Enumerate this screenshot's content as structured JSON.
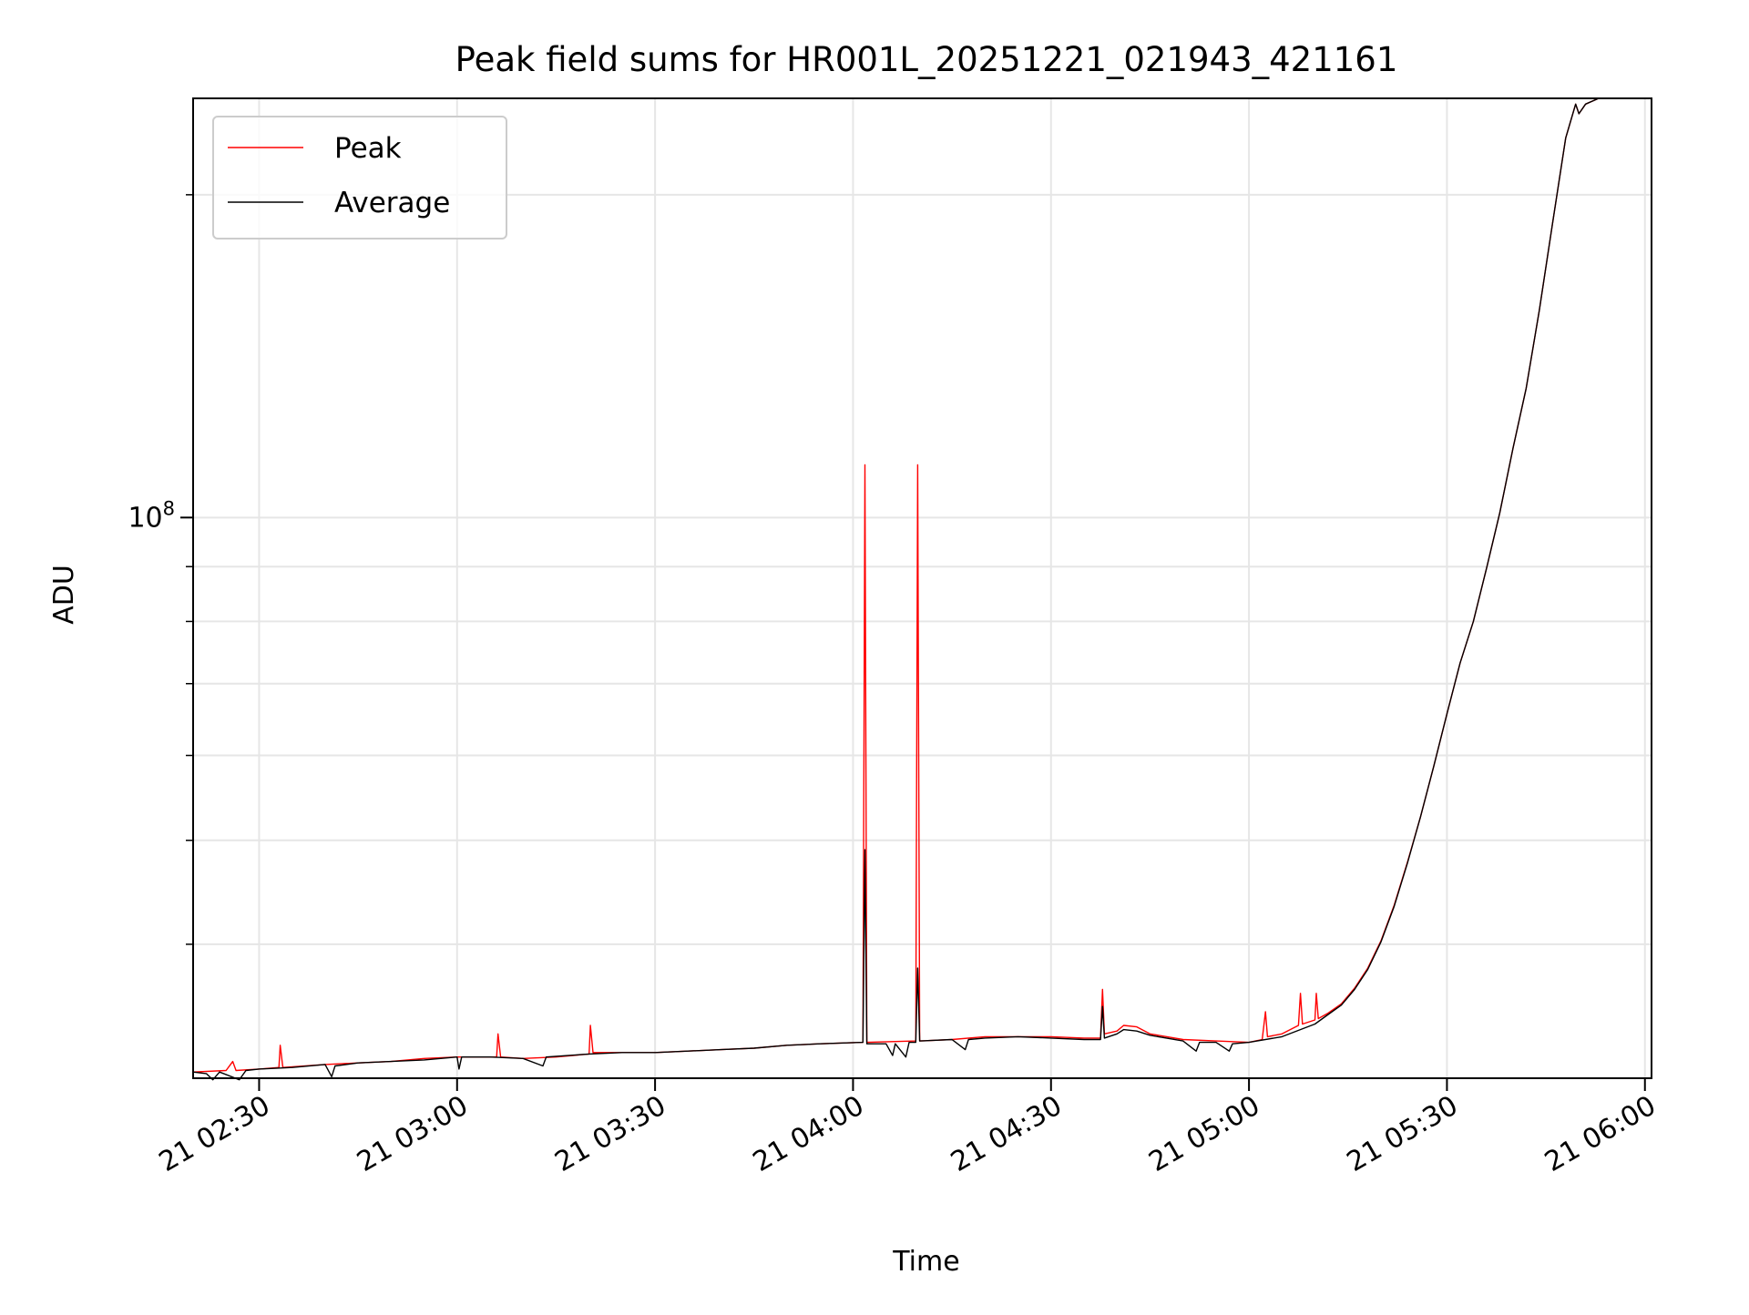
{
  "chart_data": {
    "type": "line",
    "title": "Peak field sums for HR001L_20251221_021943_421161",
    "xlabel": "Time",
    "ylabel": "ADU",
    "x_axis": {
      "unit": "time of day (day 21)",
      "range": [
        "02:20",
        "06:01"
      ],
      "ticks": [
        {
          "t": "02:30",
          "label": "21 02:30"
        },
        {
          "t": "03:00",
          "label": "21 03:00"
        },
        {
          "t": "03:30",
          "label": "21 03:30"
        },
        {
          "t": "04:00",
          "label": "21 04:00"
        },
        {
          "t": "04:30",
          "label": "21 04:30"
        },
        {
          "t": "05:00",
          "label": "21 05:00"
        },
        {
          "t": "05:30",
          "label": "21 05:30"
        },
        {
          "t": "06:00",
          "label": "21 06:00"
        }
      ]
    },
    "y_axis": {
      "scale": "log",
      "range": [
        30000000,
        246000000
      ],
      "major_ticks": [
        {
          "value": 100000000,
          "base": "10",
          "exp": "8"
        }
      ],
      "minor_ticks": [
        40000000,
        50000000,
        60000000,
        70000000,
        80000000,
        90000000,
        200000000
      ]
    },
    "grid": true,
    "legend": {
      "position": "top-left"
    },
    "series": [
      {
        "name": "Peak",
        "color": "#ff0000",
        "points": [
          [
            "02:20",
            30400000
          ],
          [
            "02:25",
            30500000
          ],
          [
            "02:26",
            31100000
          ],
          [
            "02:26.5",
            30500000
          ],
          [
            "02:30",
            30600000
          ],
          [
            "02:33",
            30700000
          ],
          [
            "02:33.2",
            32200000
          ],
          [
            "02:33.6",
            30700000
          ],
          [
            "02:40",
            30900000
          ],
          [
            "02:45",
            31000000
          ],
          [
            "02:50",
            31100000
          ],
          [
            "02:55",
            31300000
          ],
          [
            "03:00",
            31400000
          ],
          [
            "03:05",
            31400000
          ],
          [
            "03:06",
            31400000
          ],
          [
            "03:06.2",
            33000000
          ],
          [
            "03:06.6",
            31400000
          ],
          [
            "03:10",
            31300000
          ],
          [
            "03:15",
            31400000
          ],
          [
            "03:20",
            31600000
          ],
          [
            "03:20.2",
            33600000
          ],
          [
            "03:20.6",
            31700000
          ],
          [
            "03:25",
            31700000
          ],
          [
            "03:30",
            31700000
          ],
          [
            "03:35",
            31800000
          ],
          [
            "03:40",
            31900000
          ],
          [
            "03:45",
            32000000
          ],
          [
            "03:50",
            32200000
          ],
          [
            "03:55",
            32300000
          ],
          [
            "04:01.5",
            32400000
          ],
          [
            "04:01.8",
            112000000
          ],
          [
            "04:02.1",
            32400000
          ],
          [
            "04:09.5",
            32500000
          ],
          [
            "04:09.8",
            112000000
          ],
          [
            "04:10.1",
            32500000
          ],
          [
            "04:15",
            32600000
          ],
          [
            "04:20",
            32800000
          ],
          [
            "04:25",
            32800000
          ],
          [
            "04:30",
            32800000
          ],
          [
            "04:35",
            32700000
          ],
          [
            "04:37.5",
            32700000
          ],
          [
            "04:37.8",
            36300000
          ],
          [
            "04:38.1",
            33000000
          ],
          [
            "04:40",
            33200000
          ],
          [
            "04:41",
            33600000
          ],
          [
            "04:43",
            33500000
          ],
          [
            "04:45",
            33000000
          ],
          [
            "04:50",
            32600000
          ],
          [
            "04:55",
            32500000
          ],
          [
            "05:00",
            32400000
          ],
          [
            "05:02",
            32600000
          ],
          [
            "05:02.5",
            34600000
          ],
          [
            "05:02.8",
            32800000
          ],
          [
            "05:05",
            33000000
          ],
          [
            "05:07.5",
            33600000
          ],
          [
            "05:07.8",
            36000000
          ],
          [
            "05:08.1",
            33700000
          ],
          [
            "05:10",
            34000000
          ],
          [
            "05:10.2",
            36000000
          ],
          [
            "05:10.5",
            34100000
          ],
          [
            "05:12",
            34500000
          ],
          [
            "05:14",
            35200000
          ],
          [
            "05:16",
            36400000
          ],
          [
            "05:18",
            38000000
          ],
          [
            "05:20",
            40300000
          ],
          [
            "05:22",
            43500000
          ],
          [
            "05:24",
            47700000
          ],
          [
            "05:26",
            52600000
          ],
          [
            "05:28",
            58600000
          ],
          [
            "05:30",
            65600000
          ],
          [
            "05:32",
            73200000
          ],
          [
            "05:34",
            80000000
          ],
          [
            "05:36",
            89700000
          ],
          [
            "05:38",
            101000000
          ],
          [
            "05:40",
            116000000
          ],
          [
            "05:42",
            132000000
          ],
          [
            "05:44",
            156000000
          ],
          [
            "05:46",
            188000000
          ],
          [
            "05:48",
            226000000
          ],
          [
            "05:49.5",
            243000000
          ],
          [
            "05:50",
            238000000
          ],
          [
            "05:51",
            243000000
          ],
          [
            "05:53",
            246000000
          ],
          [
            "05:56",
            246000000
          ]
        ]
      },
      {
        "name": "Average",
        "color": "#000000",
        "points": [
          [
            "02:20",
            30400000
          ],
          [
            "02:22",
            30300000
          ],
          [
            "02:23",
            29900000
          ],
          [
            "02:24",
            30400000
          ],
          [
            "02:27",
            29900000
          ],
          [
            "02:28",
            30500000
          ],
          [
            "02:30",
            30600000
          ],
          [
            "02:35",
            30700000
          ],
          [
            "02:40",
            30900000
          ],
          [
            "02:41",
            30100000
          ],
          [
            "02:41.5",
            30800000
          ],
          [
            "02:45",
            31000000
          ],
          [
            "02:50",
            31100000
          ],
          [
            "02:55",
            31200000
          ],
          [
            "03:00",
            31400000
          ],
          [
            "03:00.3",
            30600000
          ],
          [
            "03:00.7",
            31400000
          ],
          [
            "03:05",
            31400000
          ],
          [
            "03:10",
            31300000
          ],
          [
            "03:13",
            30800000
          ],
          [
            "03:13.5",
            31400000
          ],
          [
            "03:20",
            31600000
          ],
          [
            "03:25",
            31700000
          ],
          [
            "03:30",
            31700000
          ],
          [
            "03:35",
            31800000
          ],
          [
            "03:40",
            31900000
          ],
          [
            "03:45",
            32000000
          ],
          [
            "03:50",
            32200000
          ],
          [
            "03:55",
            32300000
          ],
          [
            "04:01.5",
            32400000
          ],
          [
            "04:01.8",
            49000000
          ],
          [
            "04:02.1",
            32300000
          ],
          [
            "04:05",
            32300000
          ],
          [
            "04:06",
            31500000
          ],
          [
            "04:06.4",
            32300000
          ],
          [
            "04:08",
            31400000
          ],
          [
            "04:08.5",
            32400000
          ],
          [
            "04:09.5",
            32400000
          ],
          [
            "04:09.8",
            38000000
          ],
          [
            "04:10.1",
            32500000
          ],
          [
            "04:15",
            32600000
          ],
          [
            "04:17",
            31900000
          ],
          [
            "04:17.5",
            32600000
          ],
          [
            "04:20",
            32700000
          ],
          [
            "04:25",
            32800000
          ],
          [
            "04:30",
            32700000
          ],
          [
            "04:35",
            32600000
          ],
          [
            "04:37.5",
            32600000
          ],
          [
            "04:37.8",
            35000000
          ],
          [
            "04:38.1",
            32700000
          ],
          [
            "04:40",
            33000000
          ],
          [
            "04:41",
            33300000
          ],
          [
            "04:43",
            33200000
          ],
          [
            "04:45",
            32900000
          ],
          [
            "04:50",
            32500000
          ],
          [
            "04:52",
            31800000
          ],
          [
            "04:52.5",
            32400000
          ],
          [
            "04:55",
            32400000
          ],
          [
            "04:57",
            31800000
          ],
          [
            "04:57.5",
            32300000
          ],
          [
            "05:00",
            32400000
          ],
          [
            "05:05",
            32800000
          ],
          [
            "05:10",
            33700000
          ],
          [
            "05:12",
            34400000
          ],
          [
            "05:14",
            35100000
          ],
          [
            "05:16",
            36300000
          ],
          [
            "05:18",
            37900000
          ],
          [
            "05:20",
            40200000
          ],
          [
            "05:22",
            43400000
          ],
          [
            "05:24",
            47600000
          ],
          [
            "05:26",
            52600000
          ],
          [
            "05:28",
            58600000
          ],
          [
            "05:30",
            65600000
          ],
          [
            "05:32",
            73200000
          ],
          [
            "05:34",
            80000000
          ],
          [
            "05:36",
            89700000
          ],
          [
            "05:38",
            101000000
          ],
          [
            "05:40",
            116000000
          ],
          [
            "05:42",
            132000000
          ],
          [
            "05:44",
            156000000
          ],
          [
            "05:46",
            188000000
          ],
          [
            "05:48",
            226000000
          ],
          [
            "05:49.5",
            243000000
          ],
          [
            "05:50",
            238000000
          ],
          [
            "05:51",
            243000000
          ],
          [
            "05:53",
            246000000
          ],
          [
            "05:56",
            246000000
          ]
        ]
      }
    ]
  }
}
